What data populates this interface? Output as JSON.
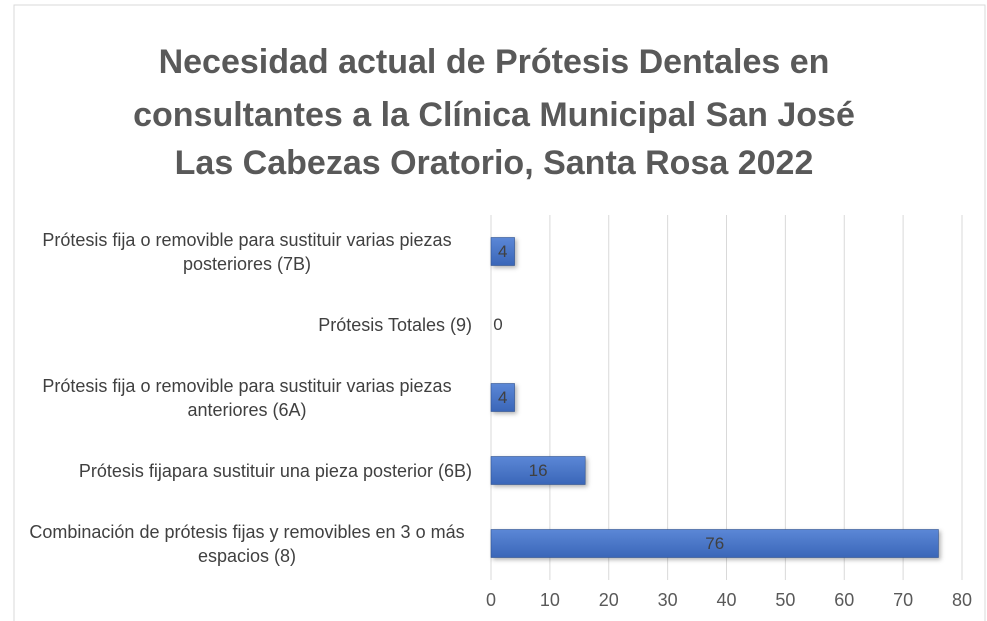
{
  "chart_data": {
    "type": "hbar",
    "title": [
      "Necesidad actual de Prótesis Dentales en",
      "consultantes a la Clínica Municipal San José",
      "Las Cabezas Oratorio, Santa Rosa 2022"
    ],
    "categories": [
      "Prótesis fija o removible para sustituir varias piezas posteriores (7B)",
      "Prótesis Totales (9)",
      "Prótesis fija o removible para sustituir varias piezas anteriores (6A)",
      "Prótesis fijapara sustituir una pieza posterior (6B)",
      "Combinación de prótesis fijas y removibles en 3 o más espacios (8)"
    ],
    "values": [
      4,
      0,
      4,
      16,
      76
    ],
    "color": "#4472c4",
    "xlim": [
      0,
      80
    ],
    "xticks": [
      0,
      10,
      20,
      30,
      40,
      50,
      60,
      70,
      80
    ],
    "grid": true
  }
}
